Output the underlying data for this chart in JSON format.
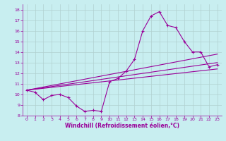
{
  "xlabel": "Windchill (Refroidissement éolien,°C)",
  "bg_color": "#c8eef0",
  "line_color": "#990099",
  "grid_color": "#b0d0d0",
  "xlim": [
    -0.5,
    23.5
  ],
  "ylim": [
    8,
    18.5
  ],
  "xticks": [
    0,
    1,
    2,
    3,
    4,
    5,
    6,
    7,
    8,
    9,
    10,
    11,
    12,
    13,
    14,
    15,
    16,
    17,
    18,
    19,
    20,
    21,
    22,
    23
  ],
  "yticks": [
    8,
    9,
    10,
    11,
    12,
    13,
    14,
    15,
    16,
    17,
    18
  ],
  "main_x": [
    0,
    1,
    2,
    3,
    4,
    5,
    6,
    7,
    8,
    9,
    10,
    11,
    12,
    13,
    14,
    15,
    16,
    17,
    18,
    19,
    20,
    21,
    22,
    23
  ],
  "main_y": [
    10.4,
    10.2,
    9.5,
    9.9,
    10.0,
    9.7,
    8.9,
    8.4,
    8.5,
    8.4,
    11.2,
    11.5,
    12.2,
    13.3,
    16.0,
    17.4,
    17.8,
    16.5,
    16.3,
    15.0,
    14.0,
    14.0,
    12.6,
    12.8
  ],
  "line1_x": [
    0,
    23
  ],
  "line1_y": [
    10.4,
    12.4
  ],
  "line2_x": [
    0,
    23
  ],
  "line2_y": [
    10.4,
    13.0
  ],
  "line3_x": [
    0,
    23
  ],
  "line3_y": [
    10.4,
    13.8
  ]
}
